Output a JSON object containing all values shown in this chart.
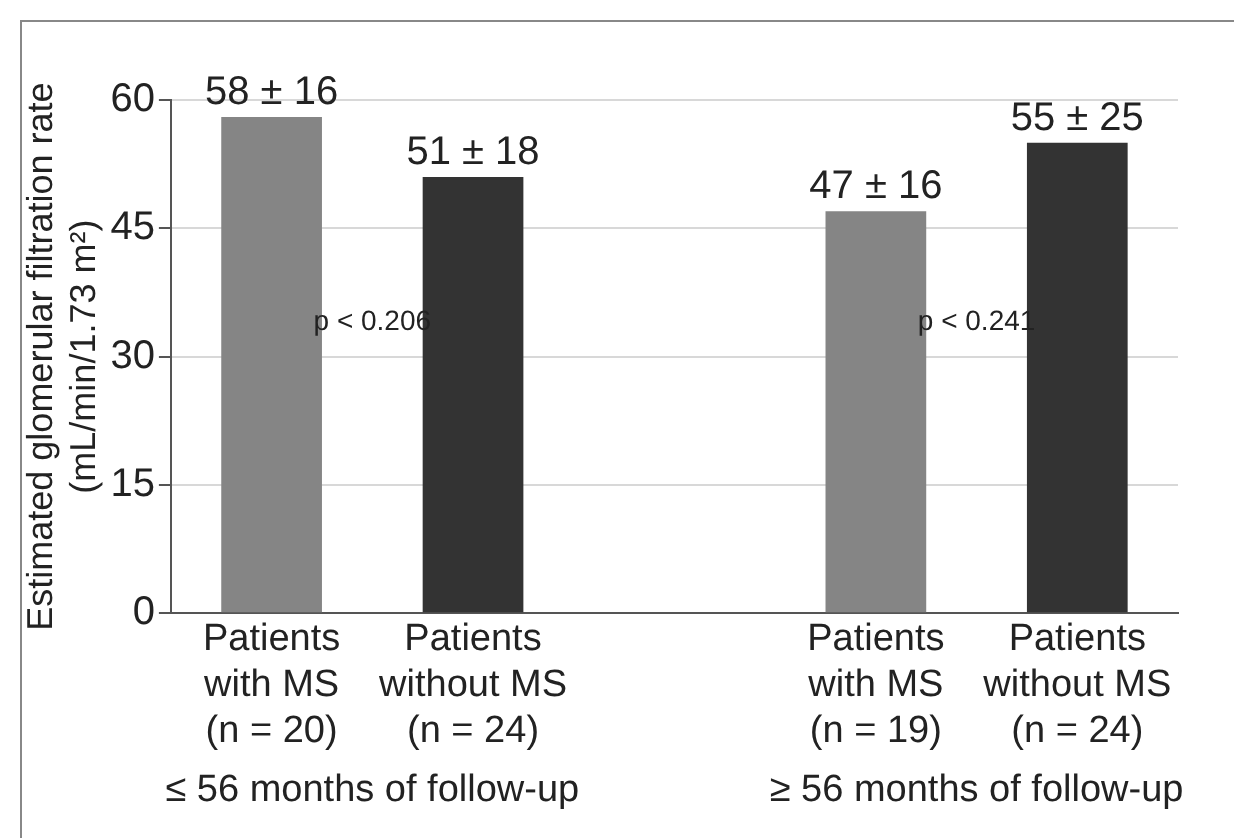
{
  "chart_data": {
    "type": "bar",
    "categories": [
      "Patients\nwith MS\n(n = 20)",
      "Patients\nwithout MS\n(n = 24)",
      null,
      "Patients\nwith MS\n(n = 19)",
      "Patients\nwithout MS\n(n = 24)"
    ],
    "values": [
      58,
      51,
      null,
      47,
      55
    ],
    "colors": [
      "#858585",
      "#333333",
      "#858585",
      "#858585",
      "#333333"
    ],
    "value_labels": [
      "58 ± 16",
      "51 ± 18",
      null,
      "47 ± 16",
      "55 ± 25"
    ],
    "ylabel": "Estimated glomerular filtration rate\n(mL/min/1.73 m²)",
    "ylim": [
      0,
      60
    ],
    "yticks": [
      0,
      15,
      30,
      45,
      60
    ],
    "grid": "y",
    "legend": false,
    "annotations": [
      "p < 0.206",
      "p < 0.241",
      "≤ 56 months of follow-up",
      "≥ 56 months of follow-up"
    ]
  }
}
